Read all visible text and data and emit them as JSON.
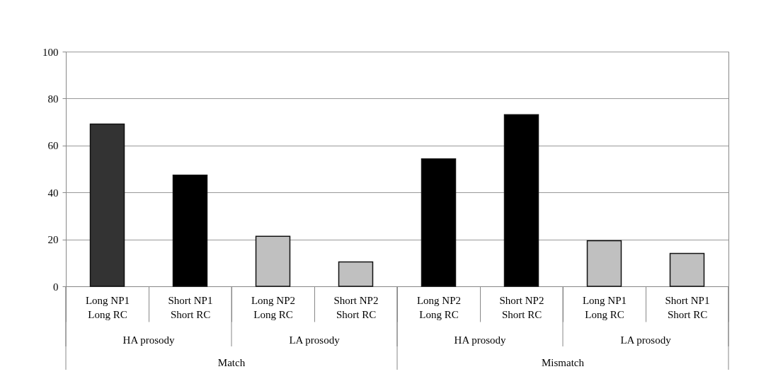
{
  "chart_data": {
    "type": "bar",
    "categories": [
      "Long NP1\nLong RC",
      "Short NP1\nShort RC",
      "Long NP2\nLong RC",
      "Short NP2\nShort RC",
      "Long NP2\nLong RC",
      "Short NP2\nShort RC",
      "Long NP1\nLong RC",
      "Short NP1\nShort RC"
    ],
    "values": [
      69.1,
      47.4,
      21.3,
      10.4,
      54.3,
      73.1,
      19.4,
      14.0
    ],
    "colors": [
      "#333333",
      "#000000",
      "#c0c0c0",
      "#c0c0c0",
      "#000000",
      "#000000",
      "#c0c0c0",
      "#c0c0c0"
    ],
    "annotations": [
      "HA prosody",
      "LA prosody",
      "HA prosody",
      "LA prosody",
      "Match",
      "Mismatch"
    ],
    "ylim": [
      0,
      100
    ],
    "yticks": [
      0,
      20,
      40,
      60,
      80,
      100
    ],
    "grid": "y"
  }
}
